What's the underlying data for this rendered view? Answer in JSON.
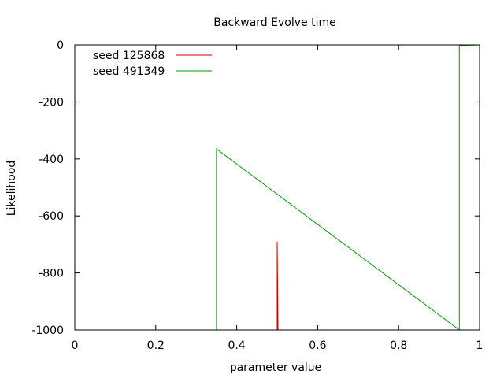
{
  "chart_data": {
    "type": "line",
    "title": "Backward Evolve time",
    "xlabel": "parameter value",
    "ylabel": "Likelihood",
    "xlim": [
      0,
      1
    ],
    "ylim": [
      -1000,
      0
    ],
    "xticks": [
      0,
      0.2,
      0.4,
      0.6,
      0.8,
      1
    ],
    "xtick_labels": [
      "0",
      "0.2",
      "0.4",
      "0.6",
      "0.8",
      "1"
    ],
    "yticks": [
      0,
      -200,
      -400,
      -600,
      -800,
      -1000
    ],
    "ytick_labels": [
      "0",
      "-200",
      "-400",
      "-600",
      "-800",
      "-1000"
    ],
    "grid": false,
    "legend_position": "top-left",
    "series": [
      {
        "name": "seed 125868",
        "color": "#cc0000",
        "points": [
          [
            0.5,
            -1000
          ],
          [
            0.5,
            -690
          ],
          [
            0.502,
            -1000
          ]
        ]
      },
      {
        "name": "seed 491349",
        "color": "#009900",
        "points": [
          [
            0.35,
            -1000
          ],
          [
            0.35,
            -365
          ],
          [
            0.95,
            -1000
          ],
          [
            0.95,
            -2
          ],
          [
            1.0,
            0
          ]
        ]
      }
    ]
  }
}
